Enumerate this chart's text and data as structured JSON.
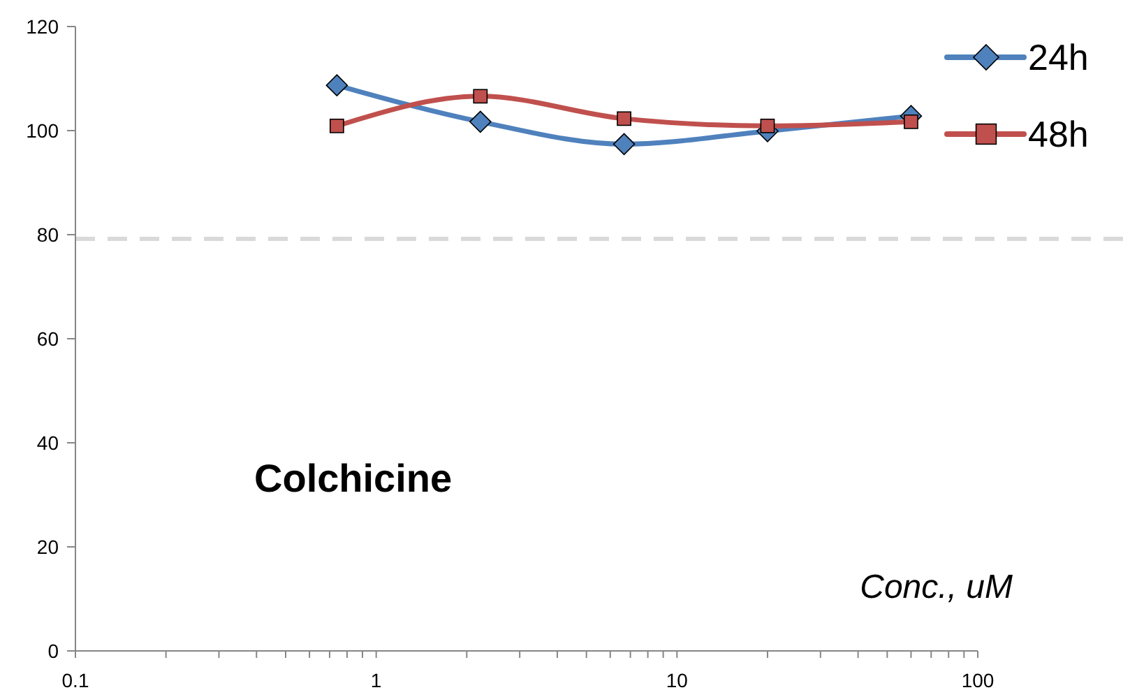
{
  "chart_data": {
    "type": "line",
    "xlabel": "Conc., uM",
    "annotations": [
      "Colchicine"
    ],
    "x": [
      0.74,
      2.22,
      6.67,
      20,
      60
    ],
    "series": [
      {
        "name": "24h",
        "color": "#4f81bd",
        "marker": "diamond",
        "values": [
          108.7,
          101.7,
          97.4,
          99.9,
          102.8
        ]
      },
      {
        "name": "48h",
        "color": "#c0504d",
        "marker": "square",
        "values": [
          100.9,
          106.6,
          102.3,
          100.9,
          101.7
        ]
      }
    ],
    "log": "x",
    "xlim": [
      0.1,
      100
    ],
    "xticks": [
      0.1,
      {
        "value": 0.2,
        "label": null
      },
      {
        "value": 0.3,
        "label": null
      },
      {
        "value": 0.4,
        "label": null
      },
      {
        "value": 0.5,
        "label": null
      },
      {
        "value": 0.6,
        "label": null
      },
      {
        "value": 0.7,
        "label": null
      },
      {
        "value": 0.8,
        "label": null
      },
      {
        "value": 0.9,
        "label": null
      },
      1,
      {
        "value": 2,
        "label": null
      },
      {
        "value": 3,
        "label": null
      },
      {
        "value": 4,
        "label": null
      },
      {
        "value": 5,
        "label": null
      },
      {
        "value": 6,
        "label": null
      },
      {
        "value": 7,
        "label": null
      },
      {
        "value": 8,
        "label": null
      },
      {
        "value": 9,
        "label": null
      },
      10,
      {
        "value": 20,
        "label": null
      },
      {
        "value": 30,
        "label": null
      },
      {
        "value": 40,
        "label": null
      },
      {
        "value": 50,
        "label": null
      },
      {
        "value": 60,
        "label": null
      },
      {
        "value": 70,
        "label": null
      },
      {
        "value": 80,
        "label": null
      },
      {
        "value": 90,
        "label": null
      },
      100
    ],
    "ylim": [
      0,
      120
    ],
    "yticks": [
      0,
      20,
      40,
      60,
      80,
      100,
      120
    ],
    "ref_lines": [
      {
        "axis": "y",
        "value": 79.2,
        "color": "#d9d9d9",
        "line_style": "dashed"
      }
    ],
    "grid": false,
    "legend": "top right",
    "line_style": "solid"
  }
}
